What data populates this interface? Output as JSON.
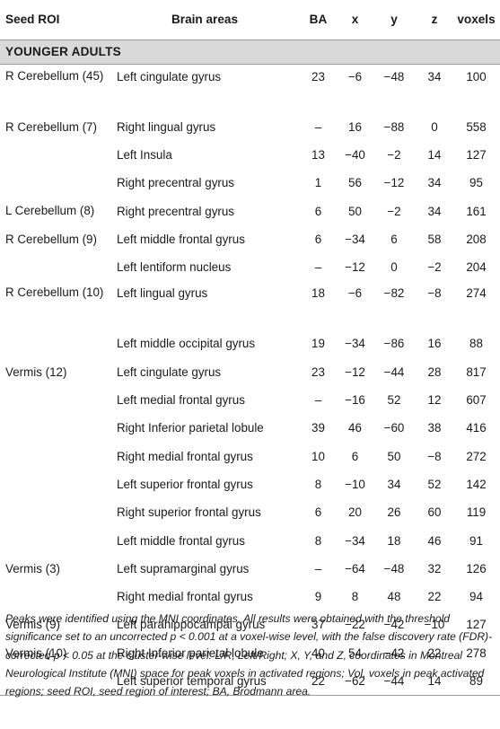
{
  "columns": {
    "seed": "Seed ROI",
    "area": "Brain areas",
    "ba": "BA",
    "x": "x",
    "y": "y",
    "z": "z",
    "voxels": "voxels"
  },
  "group_label": "YOUNGER ADULTS",
  "rows": [
    {
      "seed": "R Cerebellum (45)",
      "area": "Left cingulate gyrus",
      "ba": "23",
      "x": "−6",
      "y": "−48",
      "z": "34",
      "voxels": "100"
    },
    {
      "seed": "R Cerebellum (7)",
      "area": "Right lingual gyrus",
      "ba": "–",
      "x": "16",
      "y": "−88",
      "z": "0",
      "voxels": "558"
    },
    {
      "seed": "",
      "area": "Left Insula",
      "ba": "13",
      "x": "−40",
      "y": "−2",
      "z": "14",
      "voxels": "127"
    },
    {
      "seed": "",
      "area": "Right precentral gyrus",
      "ba": "1",
      "x": "56",
      "y": "−12",
      "z": "34",
      "voxels": "95"
    },
    {
      "seed": "L Cerebellum (8)",
      "area": "Right precentral gyrus",
      "ba": "6",
      "x": "50",
      "y": "−2",
      "z": "34",
      "voxels": "161"
    },
    {
      "seed": "R Cerebellum (9)",
      "area": "Left middle frontal gyrus",
      "ba": "6",
      "x": "−34",
      "y": "6",
      "z": "58",
      "voxels": "208"
    },
    {
      "seed": "",
      "area": "Left lentiform nucleus",
      "ba": "–",
      "x": "−12",
      "y": "0",
      "z": "−2",
      "voxels": "204"
    },
    {
      "seed": "R Cerebellum (10)",
      "area": "Left lingual gyrus",
      "ba": "18",
      "x": "−6",
      "y": "−82",
      "z": "−8",
      "voxels": "274"
    },
    {
      "seed": "",
      "area": "Left middle occipital gyrus",
      "ba": "19",
      "x": "−34",
      "y": "−86",
      "z": "16",
      "voxels": "88"
    },
    {
      "seed": "Vermis (12)",
      "area": "Left cingulate gyrus",
      "ba": "23",
      "x": "−12",
      "y": "−44",
      "z": "28",
      "voxels": "817"
    },
    {
      "seed": "",
      "area": "Left medial frontal gyrus",
      "ba": "–",
      "x": "−16",
      "y": "52",
      "z": "12",
      "voxels": "607"
    },
    {
      "seed": "",
      "area": "Right Inferior parietal lobule",
      "ba": "39",
      "x": "46",
      "y": "−60",
      "z": "38",
      "voxels": "416"
    },
    {
      "seed": "",
      "area": "Right medial frontal gyrus",
      "ba": "10",
      "x": "6",
      "y": "50",
      "z": "−8",
      "voxels": "272"
    },
    {
      "seed": "",
      "area": "Left superior frontal gyrus",
      "ba": "8",
      "x": "−10",
      "y": "34",
      "z": "52",
      "voxels": "142"
    },
    {
      "seed": "",
      "area": "Right superior frontal gyrus",
      "ba": "6",
      "x": "20",
      "y": "26",
      "z": "60",
      "voxels": "119"
    },
    {
      "seed": "",
      "area": "Left middle frontal gyrus",
      "ba": "8",
      "x": "−34",
      "y": "18",
      "z": "46",
      "voxels": "91"
    },
    {
      "seed": "Vermis (3)",
      "area": "Left supramarginal gyrus",
      "ba": "–",
      "x": "−64",
      "y": "−48",
      "z": "32",
      "voxels": "126"
    },
    {
      "seed": "",
      "area": "Right medial frontal gyrus",
      "ba": "9",
      "x": "8",
      "y": "48",
      "z": "22",
      "voxels": "94"
    },
    {
      "seed": "Vermis (9)",
      "area": "Left parahippocampal gyrus",
      "ba": "37",
      "x": "−22",
      "y": "−42",
      "z": "−10",
      "voxels": "127"
    },
    {
      "seed": "Vermis (10)",
      "area": "Right Inferior parietal lobule",
      "ba": "40",
      "x": "54",
      "y": "−42",
      "z": "22",
      "voxels": "278"
    },
    {
      "seed": "",
      "area": "Left superior temporal gyrus",
      "ba": "22",
      "x": "−62",
      "y": "−44",
      "z": "14",
      "voxels": "89"
    }
  ],
  "footnote": "Peaks were identified using the MNI coordinates. All results were obtained with the threshold significance set to an uncorrected p < 0.001 at a voxel-wise level, with the false discovery rate (FDR)-corrected p < 0.05 at the cluster-wise level. L/R, Left/Right; X, Y, and Z, coordinates in Montreal Neurological Institute (MNI) space for peak voxels in activated regions; Vol, voxels in peak activated regions; seed ROI, seed region of interest; BA, Brodmann area."
}
